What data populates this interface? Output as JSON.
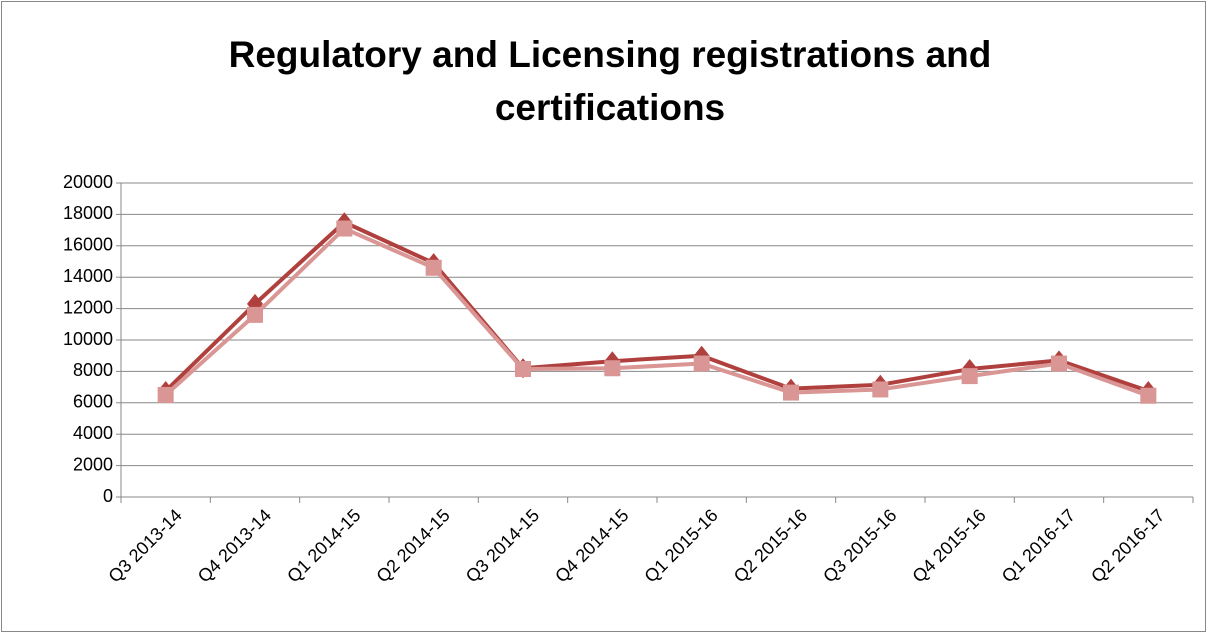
{
  "chart_data": {
    "type": "line",
    "title": "Regulatory and Licensing registrations and certifications",
    "categories": [
      "Q3 2013-14",
      "Q4 2013-14",
      "Q1 2014-15",
      "Q2 2014-15",
      "Q3 2014-15",
      "Q4 2014-15",
      "Q1 2015-16",
      "Q2 2015-16",
      "Q3 2015-16",
      "Q4 2015-16",
      "Q1 2016-17",
      "Q2 2016-17"
    ],
    "series": [
      {
        "color": "#b0403e",
        "marker": "diamond",
        "values": [
          6750,
          12300,
          17500,
          14900,
          8200,
          8650,
          9000,
          6900,
          7150,
          8150,
          8700,
          6750
        ]
      },
      {
        "color": "#d99694",
        "marker": "square",
        "values": [
          6500,
          11600,
          17100,
          14600,
          8150,
          8200,
          8500,
          6650,
          6850,
          7700,
          8500,
          6450
        ]
      }
    ],
    "ylim": [
      0,
      20000
    ],
    "yticks": [
      0,
      2000,
      4000,
      6000,
      8000,
      10000,
      12000,
      14000,
      16000,
      18000,
      20000
    ],
    "grid": true
  }
}
